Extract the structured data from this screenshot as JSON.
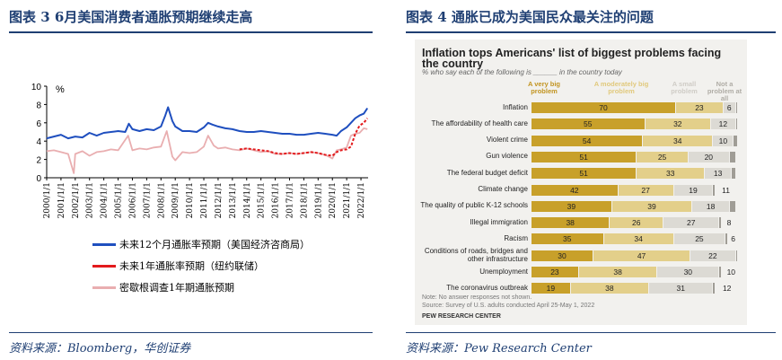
{
  "left_panel": {
    "title": "图表 3   6月美国消费者通胀预期继续走高",
    "source": "资料来源：Bloomberg，华创证券",
    "unit_label": "%",
    "legend": [
      "未来12个月通胀率预期（美国经济咨商局）",
      "未来1年通胀率预期（纽约联储）",
      "密歇根调查1年期通胀预期"
    ],
    "series_colors": [
      "#1f4fbf",
      "#e31a1c",
      "#e9aeb0"
    ]
  },
  "right_panel": {
    "title": "图表 4   通胀已成为美国民众最关注的问题",
    "source": "资料来源：Pew Research Center",
    "chart_heading": "Inflation tops Americans' list of biggest problems facing the country",
    "chart_subheading": "% who say each of the following is ______ in the country today",
    "note1": "Note: No answer responses not shown.",
    "note2": "Source: Survey of U.S. adults conducted April 25-May 1, 2022",
    "org": "PEW RESEARCH CENTER",
    "colors": [
      "#c8a02a",
      "#e3cf8a",
      "#dcdad4",
      "#a09d96"
    ]
  },
  "chart_data": [
    {
      "type": "line",
      "title": "",
      "xlabel": "",
      "ylabel": "%",
      "ylim": [
        0,
        10
      ],
      "yticks": [
        0,
        2,
        4,
        6,
        8,
        10
      ],
      "xlim": [
        2000,
        2022.5
      ],
      "xticks": [
        "2000/1/1",
        "2001/1/1",
        "2002/1/1",
        "2003/1/1",
        "2004/1/1",
        "2005/1/1",
        "2006/1/1",
        "2007/1/1",
        "2008/1/1",
        "2009/1/1",
        "2010/1/1",
        "2011/1/1",
        "2012/1/1",
        "2013/1/1",
        "2014/1/1",
        "2015/1/1",
        "2016/1/1",
        "2017/1/1",
        "2018/1/1",
        "2019/1/1",
        "2020/1/1",
        "2021/1/1",
        "2022/1/1"
      ],
      "grid": false,
      "legend_position": "bottom",
      "series": [
        {
          "name": "未来12个月通胀率预期（美国经济咨商局）",
          "x": [
            2000,
            2000.5,
            2001,
            2001.5,
            2002,
            2002.5,
            2003,
            2003.5,
            2004,
            2004.5,
            2005,
            2005.5,
            2005.75,
            2006,
            2006.5,
            2007,
            2007.5,
            2008,
            2008.3,
            2008.5,
            2008.8,
            2009,
            2009.5,
            2010,
            2010.5,
            2011,
            2011.3,
            2011.6,
            2012,
            2012.5,
            2013,
            2013.5,
            2014,
            2014.5,
            2015,
            2015.5,
            2016,
            2016.5,
            2017,
            2017.5,
            2018,
            2018.5,
            2019,
            2019.5,
            2020,
            2020.3,
            2020.6,
            2021,
            2021.3,
            2021.6,
            2021.9,
            2022.2,
            2022.45
          ],
          "values": [
            4.3,
            4.5,
            4.7,
            4.3,
            4.5,
            4.4,
            4.9,
            4.6,
            4.9,
            5.0,
            5.1,
            5.0,
            5.9,
            5.3,
            5.1,
            5.3,
            5.2,
            5.6,
            6.8,
            7.7,
            6.2,
            5.6,
            5.1,
            5.1,
            5.0,
            5.5,
            6.0,
            5.8,
            5.6,
            5.4,
            5.3,
            5.1,
            5.0,
            5.0,
            5.1,
            5.0,
            4.9,
            4.8,
            4.8,
            4.7,
            4.7,
            4.8,
            4.9,
            4.8,
            4.7,
            4.6,
            5.1,
            5.5,
            6.0,
            6.5,
            6.8,
            7.0,
            7.6
          ]
        },
        {
          "name": "未来1年通胀率预期（纽约联储）",
          "x": [
            2013.5,
            2014,
            2014.5,
            2015,
            2015.5,
            2016,
            2016.5,
            2017,
            2017.5,
            2018,
            2018.5,
            2019,
            2019.5,
            2020,
            2020.3,
            2020.6,
            2021,
            2021.3,
            2021.6,
            2021.9,
            2022.2,
            2022.45
          ],
          "values": [
            3.1,
            3.2,
            3.1,
            3.0,
            2.9,
            2.7,
            2.6,
            2.7,
            2.6,
            2.7,
            2.8,
            2.7,
            2.5,
            2.4,
            2.8,
            3.0,
            3.1,
            3.4,
            4.8,
            5.7,
            6.0,
            6.5
          ]
        },
        {
          "name": "密歇根调查1年期通胀预期",
          "x": [
            2000,
            2000.5,
            2001,
            2001.5,
            2001.9,
            2002,
            2002.5,
            2003,
            2003.5,
            2004,
            2004.5,
            2005,
            2005.7,
            2006,
            2006.5,
            2007,
            2007.5,
            2008,
            2008.4,
            2008.8,
            2009,
            2009.5,
            2010,
            2010.5,
            2011,
            2011.3,
            2011.7,
            2012,
            2012.5,
            2013,
            2013.5,
            2014,
            2014.5,
            2015,
            2015.5,
            2016,
            2016.5,
            2017,
            2017.5,
            2018,
            2018.5,
            2019,
            2019.5,
            2020,
            2020.3,
            2020.6,
            2021,
            2021.3,
            2021.6,
            2021.9,
            2022.2,
            2022.45
          ],
          "values": [
            2.9,
            3.0,
            2.8,
            2.6,
            0.5,
            2.6,
            2.9,
            2.4,
            2.8,
            2.9,
            3.1,
            3.0,
            4.6,
            3.0,
            3.2,
            3.1,
            3.3,
            3.4,
            5.1,
            2.3,
            1.9,
            2.8,
            2.7,
            2.8,
            3.4,
            4.6,
            3.5,
            3.2,
            3.3,
            3.1,
            3.0,
            3.2,
            3.0,
            2.8,
            2.9,
            2.6,
            2.6,
            2.7,
            2.6,
            2.7,
            2.8,
            2.7,
            2.5,
            2.1,
            3.0,
            3.1,
            3.3,
            4.6,
            4.8,
            4.9,
            5.4,
            5.3
          ]
        }
      ]
    },
    {
      "type": "bar",
      "stacked": true,
      "orientation": "horizontal",
      "title": "Inflation tops Americans' list of biggest problems facing the country",
      "legend": [
        "A very big problem",
        "A moderately big problem",
        "A small problem",
        "Not a problem at all"
      ],
      "categories": [
        "Inflation",
        "The affordability of health care",
        "Violent crime",
        "Gun violence",
        "The federal budget deficit",
        "Climate change",
        "The quality of public K-12 schools",
        "Illegal immigration",
        "Racism",
        "Conditions of roads, bridges and other infrastructure",
        "Unemployment",
        "The coronavirus outbreak"
      ],
      "series": [
        {
          "name": "A very big problem",
          "values": [
            70,
            55,
            54,
            51,
            51,
            42,
            39,
            38,
            35,
            30,
            23,
            19
          ]
        },
        {
          "name": "A moderately big problem",
          "values": [
            23,
            32,
            34,
            25,
            33,
            27,
            39,
            26,
            34,
            47,
            38,
            38
          ]
        },
        {
          "name": "A small problem",
          "values": [
            6,
            12,
            10,
            20,
            13,
            19,
            18,
            27,
            25,
            22,
            30,
            31
          ]
        },
        {
          "name": "Not a problem at all",
          "values": [
            1,
            1,
            2,
            3,
            2,
            11,
            3,
            8,
            6,
            1,
            10,
            12
          ]
        }
      ],
      "data_labels": [
        [
          "70",
          "23",
          "6",
          ""
        ],
        [
          "55",
          "32",
          "12",
          ""
        ],
        [
          "54",
          "34",
          "10",
          ""
        ],
        [
          "51",
          "25",
          "20",
          ""
        ],
        [
          "51",
          "33",
          "13",
          ""
        ],
        [
          "42",
          "27",
          "19",
          "11"
        ],
        [
          "39",
          "39",
          "18",
          ""
        ],
        [
          "38",
          "26",
          "27",
          "8"
        ],
        [
          "35",
          "34",
          "25",
          "6"
        ],
        [
          "30",
          "47",
          "22",
          ""
        ],
        [
          "23",
          "38",
          "30",
          "10"
        ],
        [
          "19",
          "38",
          "31",
          "12"
        ]
      ]
    }
  ]
}
